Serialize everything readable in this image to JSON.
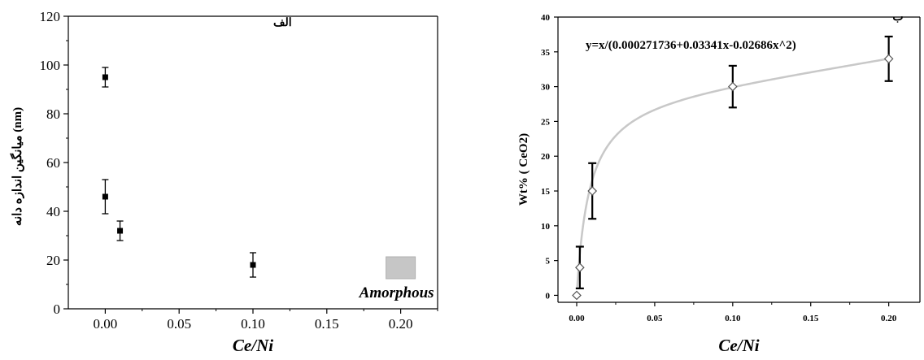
{
  "chart_data": [
    {
      "type": "scatter",
      "panel_label": "الف",
      "xlabel": "Ce/Ni",
      "ylabel": "میانگین اندازه دانه (nm)",
      "xlim": [
        -0.025,
        0.225
      ],
      "ylim": [
        0,
        120
      ],
      "x_ticks": [
        "0.00",
        "0.05",
        "0.10",
        "0.15",
        "0.20"
      ],
      "y_ticks": [
        "0",
        "20",
        "40",
        "60",
        "80",
        "100",
        "120"
      ],
      "series": [
        {
          "points": [
            {
              "x": 0.0,
              "y": 95,
              "err": 4
            },
            {
              "x": 0.0,
              "y": 46,
              "err": 7
            },
            {
              "x": 0.01,
              "y": 32,
              "err": 4
            },
            {
              "x": 0.1,
              "y": 18,
              "err": 5
            }
          ]
        }
      ],
      "annotation": {
        "text": "Amorphous",
        "x": 0.2,
        "y": 17,
        "color": "#c6c6c6"
      }
    },
    {
      "type": "scatter",
      "panel_label": "ب",
      "xlabel": "Ce/Ni",
      "ylabel": "Wt% ( CeO2)",
      "xlim": [
        -0.012,
        0.22
      ],
      "ylim": [
        -1,
        40
      ],
      "x_ticks": [
        "0.00",
        "0.05",
        "0.10",
        "0.15",
        "0.20"
      ],
      "y_ticks": [
        "0",
        "5",
        "10",
        "15",
        "20",
        "25",
        "30",
        "35",
        "40"
      ],
      "equation": "y=x/(0.000271736+0.03341x-0.02686x^2)",
      "fit": {
        "a": 0.000271736,
        "b": 0.03341,
        "c": -0.02686,
        "color": "#c8c8c8"
      },
      "series": [
        {
          "points": [
            {
              "x": 0.0,
              "y": 0,
              "err": 0
            },
            {
              "x": 0.002,
              "y": 4,
              "err": 3
            },
            {
              "x": 0.01,
              "y": 15,
              "err": 4
            },
            {
              "x": 0.1,
              "y": 30,
              "err": 3
            },
            {
              "x": 0.2,
              "y": 34,
              "err": 3.2
            }
          ]
        }
      ]
    }
  ]
}
